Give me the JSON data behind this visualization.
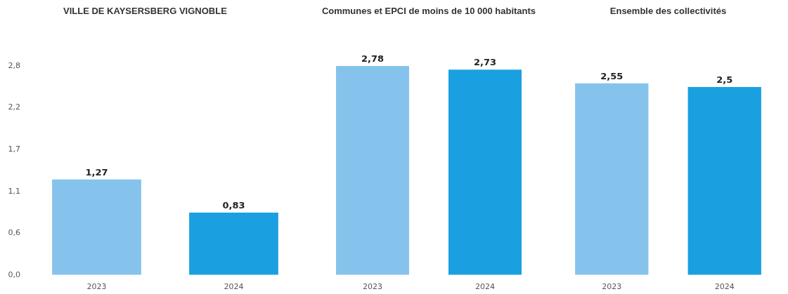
{
  "chart_data": [
    {
      "type": "bar",
      "title": "VILLE DE KAYSERSBERG VIGNOBLE",
      "categories": [
        "2023",
        "2024"
      ],
      "values": [
        1.27,
        0.83
      ],
      "value_labels": [
        "1,27",
        "0,83"
      ],
      "colors": [
        "#86c3ec",
        "#1aa0e0"
      ],
      "ylim": [
        0,
        2.78
      ],
      "yticks": [
        {
          "value": 0,
          "label": "0,0"
        },
        {
          "value": 0.556,
          "label": "0,6"
        },
        {
          "value": 1.112,
          "label": "1,1"
        },
        {
          "value": 1.668,
          "label": "1,7"
        },
        {
          "value": 2.224,
          "label": "2,2"
        },
        {
          "value": 2.78,
          "label": "2,8"
        }
      ]
    },
    {
      "type": "bar",
      "title": "Communes et EPCI de moins de 10 000 habitants",
      "categories": [
        "2023",
        "2024"
      ],
      "values": [
        2.78,
        2.73
      ],
      "value_labels": [
        "2,78",
        "2,73"
      ],
      "colors": [
        "#86c3ec",
        "#1aa0e0"
      ],
      "ylim": [
        0,
        2.78
      ],
      "tick_labels": "x"
    },
    {
      "type": "bar",
      "title": "Ensemble des collectivités",
      "categories": [
        "2023",
        "2024"
      ],
      "values": [
        2.55,
        2.5
      ],
      "value_labels": [
        "2,55",
        "2,5"
      ],
      "colors": [
        "#86c3ec",
        "#1aa0e0"
      ],
      "ylim": [
        0,
        2.78
      ],
      "tick_labels": "x"
    }
  ]
}
